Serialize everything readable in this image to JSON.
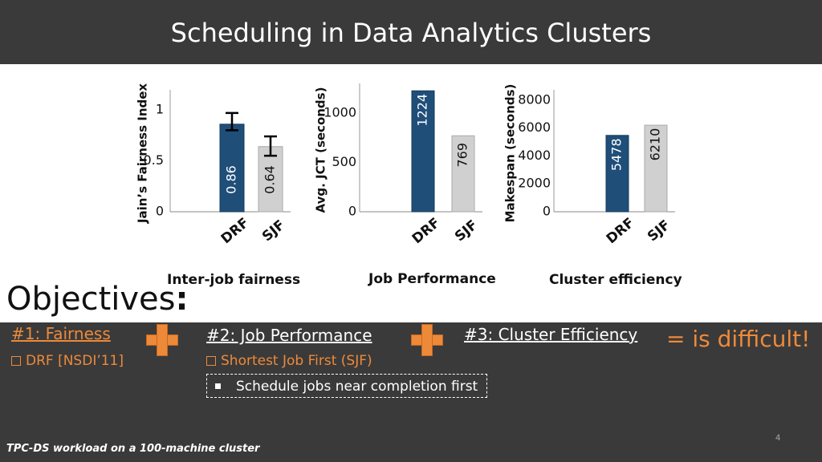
{
  "header": {
    "title": "Scheduling in Data Analytics Clusters"
  },
  "colors": {
    "drf": "#1f4e79",
    "sjf": "#d0d0d0",
    "accent": "#ed8a3a",
    "dark_bg": "#3a3a3a"
  },
  "chart_data": [
    {
      "type": "bar",
      "caption": "Inter-job fairness",
      "ylabel": "Jain’s Fairness Index",
      "categories": [
        "DRF",
        "SJF"
      ],
      "values": [
        0.86,
        0.64
      ],
      "value_labels": [
        "0.86",
        "0.64"
      ],
      "error_bars": [
        [
          0.8,
          0.97
        ],
        [
          0.55,
          0.74
        ]
      ],
      "ylim": [
        0,
        1.15
      ],
      "ticks": [
        {
          "v": 0,
          "label": "0"
        },
        {
          "v": 0.5,
          "label": "0.5"
        },
        {
          "v": 1,
          "label": "1"
        }
      ]
    },
    {
      "type": "bar",
      "caption": "Job Performance",
      "ylabel": "Avg. JCT (seconds)",
      "categories": [
        "DRF",
        "SJF"
      ],
      "values": [
        1224,
        769
      ],
      "value_labels": [
        "1224",
        "769"
      ],
      "ylim": [
        0,
        1250
      ],
      "ticks": [
        {
          "v": 0,
          "label": "0"
        },
        {
          "v": 500,
          "label": "500"
        },
        {
          "v": 1000,
          "label": "1000"
        }
      ]
    },
    {
      "type": "bar",
      "caption": "Cluster efficiency",
      "ylabel": "Makespan (seconds)",
      "categories": [
        "DRF",
        "SJF"
      ],
      "values": [
        5478,
        6210
      ],
      "value_labels": [
        "5478",
        "6210"
      ],
      "ylim": [
        0,
        8400
      ],
      "ticks": [
        {
          "v": 0,
          "label": "0"
        },
        {
          "v": 2000,
          "label": "2000"
        },
        {
          "v": 4000,
          "label": "4000"
        },
        {
          "v": 6000,
          "label": "6000"
        },
        {
          "v": 8000,
          "label": "8000"
        }
      ]
    }
  ],
  "objectives": {
    "heading": "Objectives",
    "colon": ":",
    "item1": "#1: Fairness",
    "item1_sub": "DRF [NSDI’11]",
    "item2": "#2: Job Performance",
    "item2_sub": "Shortest Job First (SJF)",
    "item2_box": "Schedule jobs near completion first",
    "item3": "#3: Cluster Efficiency",
    "result": "=  is difficult!"
  },
  "footnote": "TPC-DS workload on a 100-machine cluster",
  "page_number": "4"
}
